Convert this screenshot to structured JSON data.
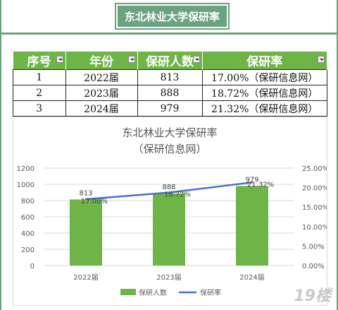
{
  "header": {
    "title": "东北林业大学保研率"
  },
  "table": {
    "columns": [
      "序号",
      "年份",
      "保研人数",
      "保研率"
    ],
    "rows": [
      [
        "1",
        "2022届",
        "813",
        "17.00%（保研信息网）"
      ],
      [
        "2",
        "2023届",
        "888",
        "18.72%（保研信息网）"
      ],
      [
        "3",
        "2024届",
        "979",
        "21.32%（保研信息网）"
      ]
    ]
  },
  "chart_data": {
    "type": "bar",
    "title": "东北林业大学保研率",
    "subtitle": "（保研信息网）",
    "categories": [
      "2022届",
      "2023届",
      "2024届"
    ],
    "series": [
      {
        "name": "保研人数",
        "type": "bar",
        "axis": "left",
        "values": [
          813,
          888,
          979
        ],
        "labels": [
          "813",
          "888",
          "979"
        ],
        "color": "#6fb447"
      },
      {
        "name": "保研率",
        "type": "line",
        "axis": "right",
        "values": [
          17.0,
          18.72,
          21.32
        ],
        "labels": [
          "17.00%",
          "18.72%",
          "21.32%"
        ],
        "color": "#4472c4"
      }
    ],
    "y_left": {
      "min": 0,
      "max": 1200,
      "ticks": [
        "0",
        "200",
        "400",
        "600",
        "800",
        "1000",
        "1200"
      ]
    },
    "y_right": {
      "min": 0,
      "max": 25,
      "ticks": [
        "0.00%",
        "5.00%",
        "10.00%",
        "15.00%",
        "20.00%",
        "25.00%"
      ]
    },
    "grid": true,
    "legend": "bottom"
  },
  "watermark": {
    "text": "19楼"
  }
}
